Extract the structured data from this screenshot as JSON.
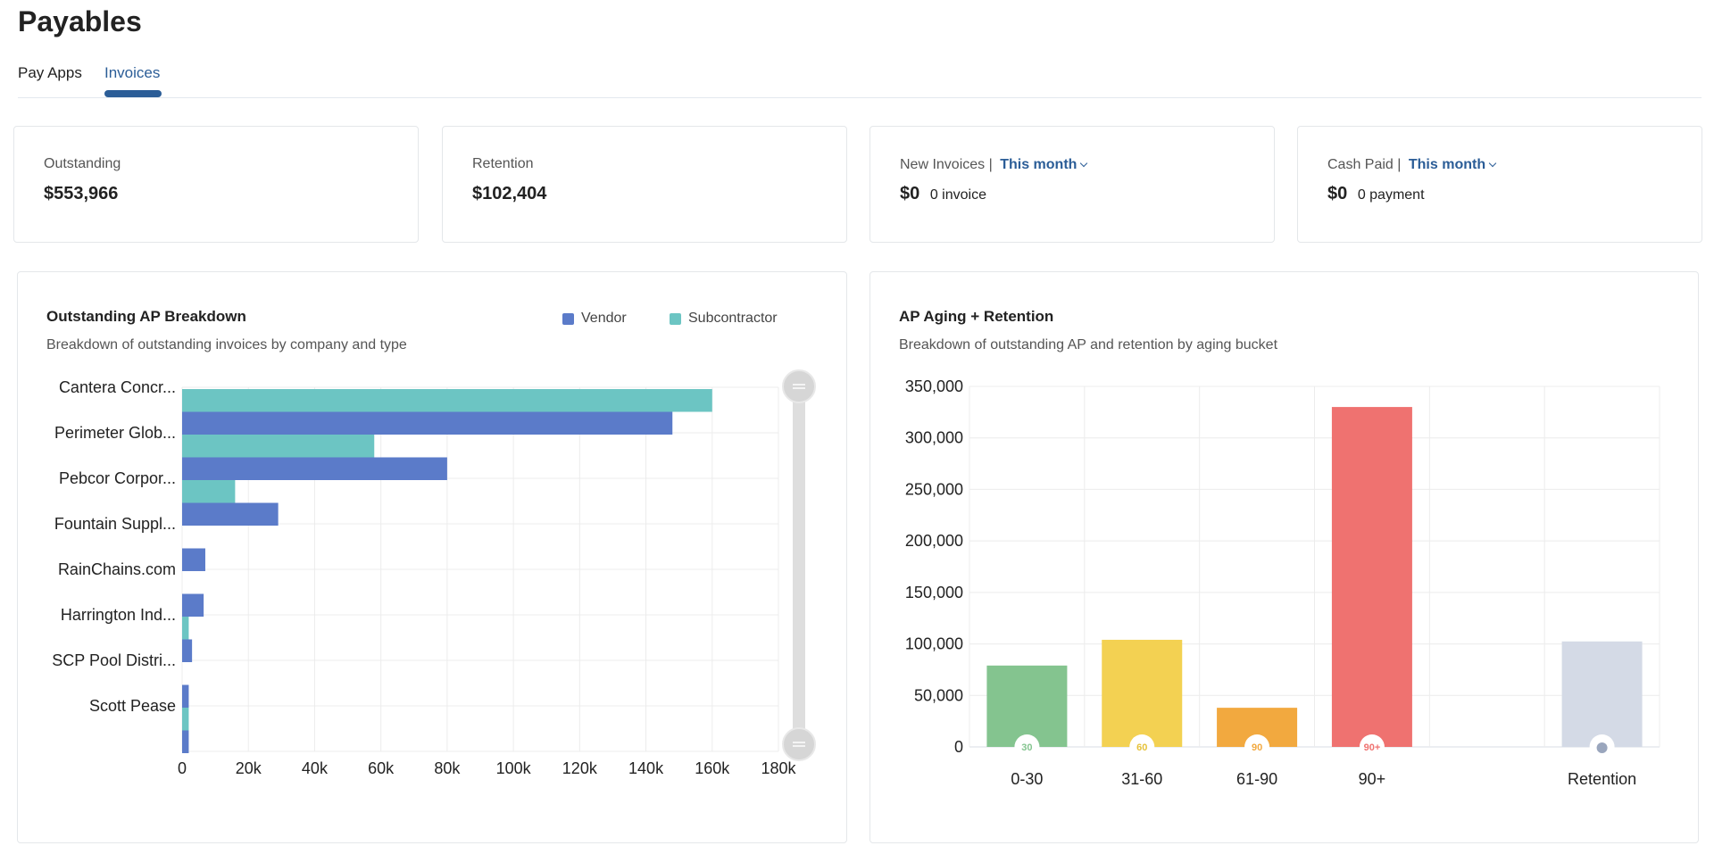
{
  "page": {
    "title": "Payables"
  },
  "tabs": [
    {
      "label": "Pay Apps"
    },
    {
      "label": "Invoices"
    }
  ],
  "cards": {
    "outstanding": {
      "label": "Outstanding",
      "value": "$553,966"
    },
    "retention": {
      "label": "Retention",
      "value": "$102,404"
    },
    "new_invoices": {
      "label": "New Invoices |",
      "period": "This month",
      "value": "$0",
      "sub": "0 invoice"
    },
    "cash_paid": {
      "label": "Cash Paid |",
      "period": "This month",
      "value": "$0",
      "sub": "0 payment"
    }
  },
  "colors": {
    "accent": "#2b5d97",
    "vendor": "#5b7bc9",
    "subcontractor": "#6cc5c3",
    "bucket_0_30": "#84c48f",
    "bucket_31_60": "#f3d152",
    "bucket_61_90": "#f2a93f",
    "bucket_90_plus": "#ef7270",
    "retention": "#d4dae6"
  },
  "breakdown_panel": {
    "title": "Outstanding AP Breakdown",
    "subtitle": "Breakdown of outstanding invoices by company and type",
    "scroll_handle_icon": "grip-lines-icon"
  },
  "aging_panel": {
    "title": "AP Aging + Retention",
    "subtitle": "Breakdown of outstanding AP and retention by aging bucket"
  },
  "chart_data": [
    {
      "type": "bar",
      "orientation": "horizontal",
      "categories": [
        "Cantera Concr...",
        "Perimeter Glob...",
        "Pebcor Corpor...",
        "Fountain Suppl...",
        "RainChains.com",
        "Harrington Ind...",
        "SCP Pool Distri...",
        "Scott Pease"
      ],
      "series": [
        {
          "name": "Subcontractor",
          "values": [
            160000,
            58000,
            16000,
            0,
            0,
            2000,
            0,
            2000
          ]
        },
        {
          "name": "Vendor",
          "values": [
            148000,
            80000,
            29000,
            7000,
            6500,
            3000,
            2000,
            2000
          ]
        }
      ],
      "xlim": [
        0,
        180000
      ],
      "xticks": [
        "0",
        "20k",
        "40k",
        "60k",
        "80k",
        "100k",
        "120k",
        "140k",
        "160k",
        "180k"
      ],
      "grid": true,
      "legend": "top-right",
      "legend_entries": [
        "Vendor",
        "Subcontractor"
      ]
    },
    {
      "type": "bar",
      "categories": [
        "0-30",
        "31-60",
        "61-90",
        "90+",
        "",
        "Retention"
      ],
      "values": [
        79000,
        104000,
        38000,
        330000,
        0,
        102404
      ],
      "badges": [
        "30",
        "60",
        "90",
        "90+",
        "",
        ""
      ],
      "ylim": [
        0,
        350000
      ],
      "yticks": [
        "0",
        "50,000",
        "100,000",
        "150,000",
        "200,000",
        "250,000",
        "300,000",
        "350,000"
      ],
      "grid": true
    }
  ]
}
